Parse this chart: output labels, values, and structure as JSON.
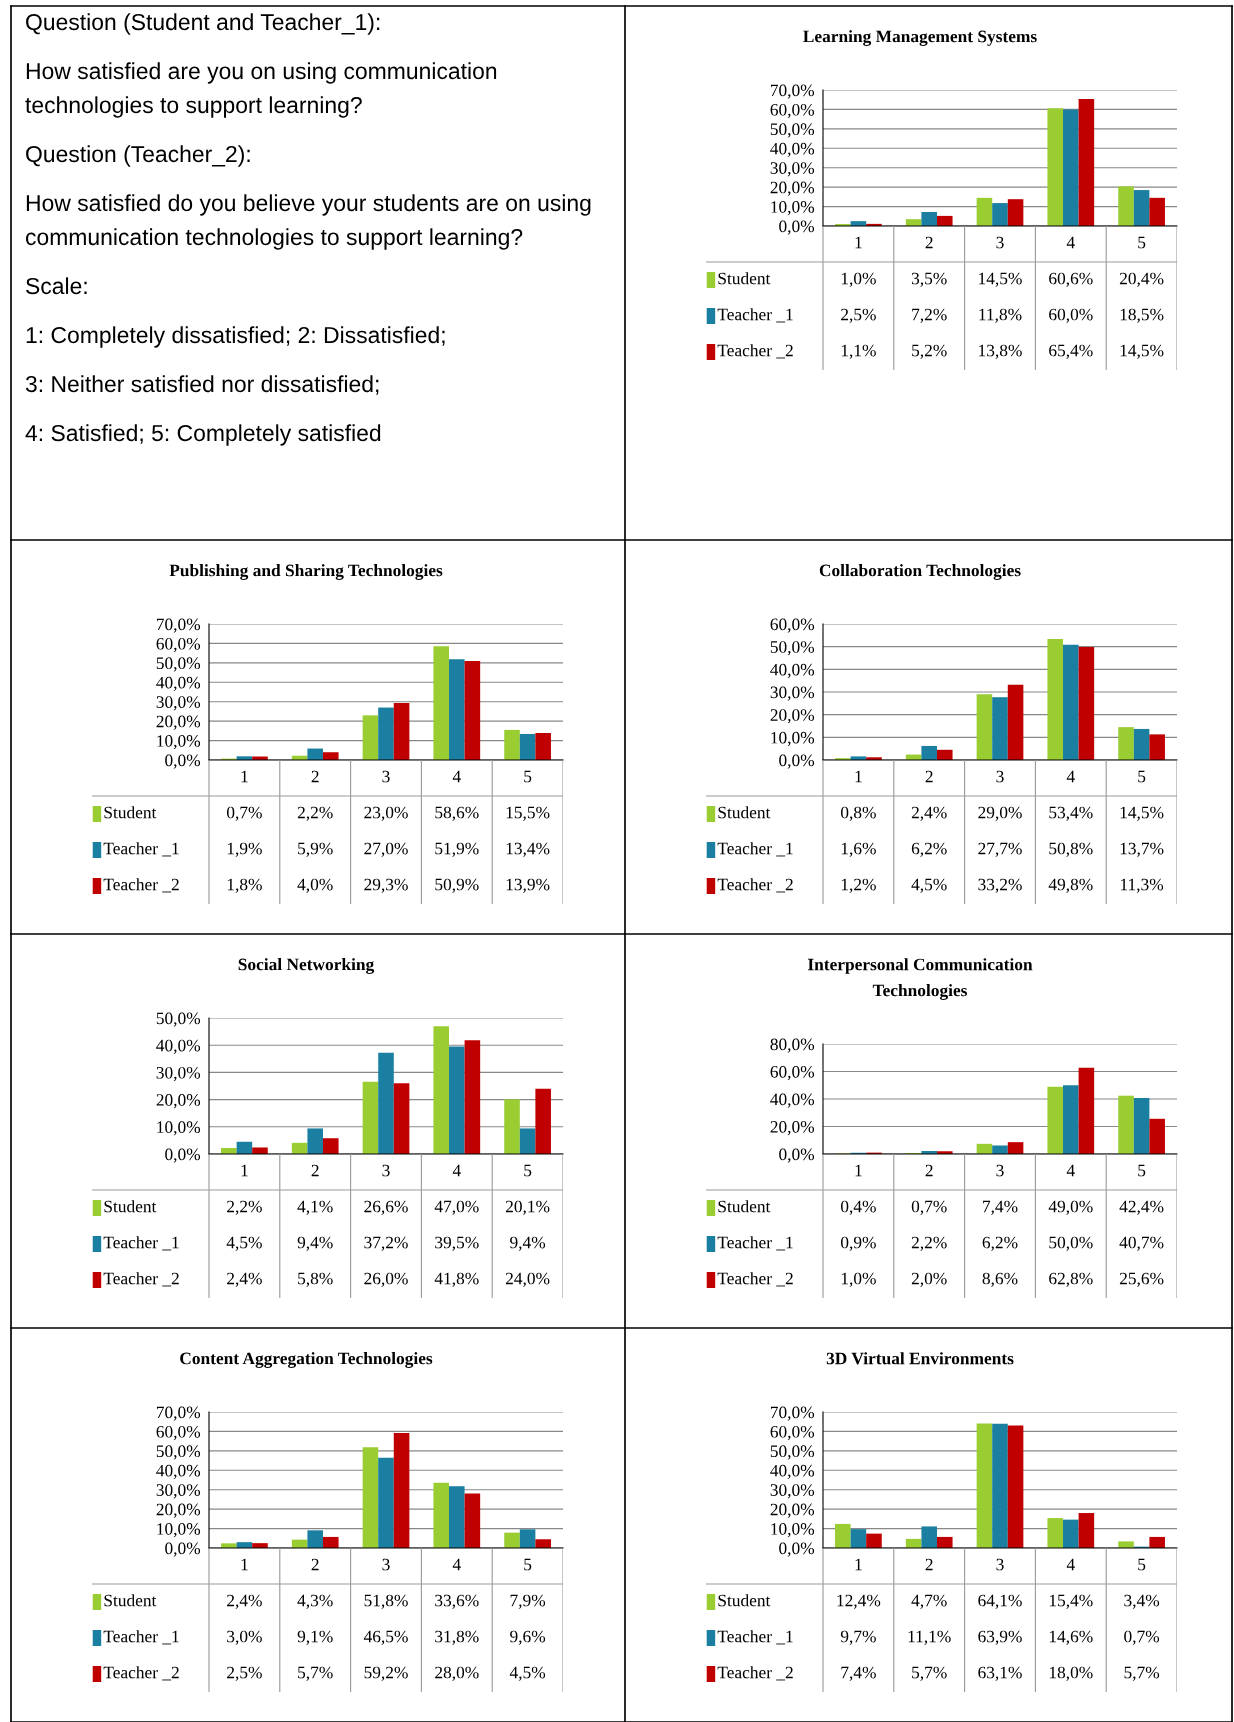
{
  "chart_data": [
    {
      "type": "other",
      "annotations": [
        "Question (Student and Teacher_1):",
        "How satisfied are you on using communication technologies to support learning?",
        "Question (Teacher_2):",
        "How satisfied do you believe your students are on using communication technologies to support learning?",
        "Scale:",
        "1: Completely dissatisfied; 2: Dissatisfied;",
        "3: Neither satisfied nor dissatisfied;",
        "4: Satisfied; 5: Completely satisfied"
      ]
    },
    {
      "type": "bar",
      "legend": "bottom left",
      "title": "Learning Management Systems",
      "categories": [
        "1",
        "2",
        "3",
        "4",
        "5"
      ],
      "grid": "y",
      "ylim": [
        0,
        70
      ],
      "yticks": [
        {
          "value": 0,
          "label": "0,0%"
        },
        {
          "value": 10,
          "label": "10,0%"
        },
        {
          "value": 20,
          "label": "20,0%"
        },
        {
          "value": 30,
          "label": "30,0%"
        },
        {
          "value": 40,
          "label": "40,0%"
        },
        {
          "value": 50,
          "label": "50,0%"
        },
        {
          "value": 60,
          "label": "60,0%"
        },
        {
          "value": 70,
          "label": "70,0%"
        }
      ],
      "series": [
        {
          "name": "Student",
          "color": "#9acd32",
          "values": [
            1.0,
            3.5,
            14.5,
            60.6,
            20.4
          ],
          "value_labels": [
            "1,0%",
            "3,5%",
            "14,5%",
            "60,6%",
            "20,4%"
          ]
        },
        {
          "name": "Teacher _1",
          "color": "#1a7fa0",
          "values": [
            2.5,
            7.2,
            11.8,
            60.0,
            18.5
          ],
          "value_labels": [
            "2,5%",
            "7,2%",
            "11,8%",
            "60,0%",
            "18,5%"
          ]
        },
        {
          "name": "Teacher _2",
          "color": "#c00000",
          "values": [
            1.1,
            5.2,
            13.8,
            65.4,
            14.5
          ],
          "value_labels": [
            "1,1%",
            "5,2%",
            "13,8%",
            "65,4%",
            "14,5%"
          ]
        }
      ]
    },
    {
      "type": "bar",
      "legend": "bottom left",
      "title": "Publishing and Sharing Technologies",
      "categories": [
        "1",
        "2",
        "3",
        "4",
        "5"
      ],
      "grid": "y",
      "ylim": [
        0,
        70
      ],
      "yticks": [
        {
          "value": 0,
          "label": "0,0%"
        },
        {
          "value": 10,
          "label": "10,0%"
        },
        {
          "value": 20,
          "label": "20,0%"
        },
        {
          "value": 30,
          "label": "30,0%"
        },
        {
          "value": 40,
          "label": "40,0%"
        },
        {
          "value": 50,
          "label": "50,0%"
        },
        {
          "value": 60,
          "label": "60,0%"
        },
        {
          "value": 70,
          "label": "70,0%"
        }
      ],
      "series": [
        {
          "name": "Student",
          "color": "#9acd32",
          "values": [
            0.7,
            2.2,
            23.0,
            58.6,
            15.5
          ],
          "value_labels": [
            "0,7%",
            "2,2%",
            "23,0%",
            "58,6%",
            "15,5%"
          ]
        },
        {
          "name": "Teacher _1",
          "color": "#1a7fa0",
          "values": [
            1.9,
            5.9,
            27.0,
            51.9,
            13.4
          ],
          "value_labels": [
            "1,9%",
            "5,9%",
            "27,0%",
            "51,9%",
            "13,4%"
          ]
        },
        {
          "name": "Teacher _2",
          "color": "#c00000",
          "values": [
            1.8,
            4.0,
            29.3,
            50.9,
            13.9
          ],
          "value_labels": [
            "1,8%",
            "4,0%",
            "29,3%",
            "50,9%",
            "13,9%"
          ]
        }
      ]
    },
    {
      "type": "bar",
      "legend": "bottom left",
      "title": "Collaboration Technologies",
      "categories": [
        "1",
        "2",
        "3",
        "4",
        "5"
      ],
      "grid": "y",
      "ylim": [
        0,
        60
      ],
      "yticks": [
        {
          "value": 0,
          "label": "0,0%"
        },
        {
          "value": 10,
          "label": "10,0%"
        },
        {
          "value": 20,
          "label": "20,0%"
        },
        {
          "value": 30,
          "label": "30,0%"
        },
        {
          "value": 40,
          "label": "40,0%"
        },
        {
          "value": 50,
          "label": "50,0%"
        },
        {
          "value": 60,
          "label": "60,0%"
        }
      ],
      "series": [
        {
          "name": "Student",
          "color": "#9acd32",
          "values": [
            0.8,
            2.4,
            29.0,
            53.4,
            14.5
          ],
          "value_labels": [
            "0,8%",
            "2,4%",
            "29,0%",
            "53,4%",
            "14,5%"
          ]
        },
        {
          "name": "Teacher _1",
          "color": "#1a7fa0",
          "values": [
            1.6,
            6.2,
            27.7,
            50.8,
            13.7
          ],
          "value_labels": [
            "1,6%",
            "6,2%",
            "27,7%",
            "50,8%",
            "13,7%"
          ]
        },
        {
          "name": "Teacher _2",
          "color": "#c00000",
          "values": [
            1.2,
            4.5,
            33.2,
            49.8,
            11.3
          ],
          "value_labels": [
            "1,2%",
            "4,5%",
            "33,2%",
            "49,8%",
            "11,3%"
          ]
        }
      ]
    },
    {
      "type": "bar",
      "legend": "bottom left",
      "title": "Social Networking",
      "categories": [
        "1",
        "2",
        "3",
        "4",
        "5"
      ],
      "grid": "y",
      "ylim": [
        0,
        50
      ],
      "yticks": [
        {
          "value": 0,
          "label": "0,0%"
        },
        {
          "value": 10,
          "label": "10,0%"
        },
        {
          "value": 20,
          "label": "20,0%"
        },
        {
          "value": 30,
          "label": "30,0%"
        },
        {
          "value": 40,
          "label": "40,0%"
        },
        {
          "value": 50,
          "label": "50,0%"
        }
      ],
      "series": [
        {
          "name": "Student",
          "color": "#9acd32",
          "values": [
            2.2,
            4.1,
            26.6,
            47.0,
            20.1
          ],
          "value_labels": [
            "2,2%",
            "4,1%",
            "26,6%",
            "47,0%",
            "20,1%"
          ]
        },
        {
          "name": "Teacher _1",
          "color": "#1a7fa0",
          "values": [
            4.5,
            9.4,
            37.2,
            39.5,
            9.4
          ],
          "value_labels": [
            "4,5%",
            "9,4%",
            "37,2%",
            "39,5%",
            "9,4%"
          ]
        },
        {
          "name": "Teacher _2",
          "color": "#c00000",
          "values": [
            2.4,
            5.8,
            26.0,
            41.8,
            24.0
          ],
          "value_labels": [
            "2,4%",
            "5,8%",
            "26,0%",
            "41,8%",
            "24,0%"
          ]
        }
      ]
    },
    {
      "type": "bar",
      "legend": "bottom left",
      "title": "Interpersonal Communication Technologies",
      "categories": [
        "1",
        "2",
        "3",
        "4",
        "5"
      ],
      "grid": "y",
      "ylim": [
        0,
        80
      ],
      "yticks": [
        {
          "value": 0,
          "label": "0,0%"
        },
        {
          "value": 20,
          "label": "20,0%"
        },
        {
          "value": 40,
          "label": "40,0%"
        },
        {
          "value": 60,
          "label": "60,0%"
        },
        {
          "value": 80,
          "label": "80,0%"
        }
      ],
      "series": [
        {
          "name": "Student",
          "color": "#9acd32",
          "values": [
            0.4,
            0.7,
            7.4,
            49.0,
            42.4
          ],
          "value_labels": [
            "0,4%",
            "0,7%",
            "7,4%",
            "49,0%",
            "42,4%"
          ]
        },
        {
          "name": "Teacher _1",
          "color": "#1a7fa0",
          "values": [
            0.9,
            2.2,
            6.2,
            50.0,
            40.7
          ],
          "value_labels": [
            "0,9%",
            "2,2%",
            "6,2%",
            "50,0%",
            "40,7%"
          ]
        },
        {
          "name": "Teacher _2",
          "color": "#c00000",
          "values": [
            1.0,
            2.0,
            8.6,
            62.8,
            25.6
          ],
          "value_labels": [
            "1,0%",
            "2,0%",
            "8,6%",
            "62,8%",
            "25,6%"
          ]
        }
      ]
    },
    {
      "type": "bar",
      "legend": "bottom left",
      "title": "Content Aggregation Technologies",
      "categories": [
        "1",
        "2",
        "3",
        "4",
        "5"
      ],
      "grid": "y",
      "ylim": [
        0,
        70
      ],
      "yticks": [
        {
          "value": 0,
          "label": "0,0%"
        },
        {
          "value": 10,
          "label": "10,0%"
        },
        {
          "value": 20,
          "label": "20,0%"
        },
        {
          "value": 30,
          "label": "30,0%"
        },
        {
          "value": 40,
          "label": "40,0%"
        },
        {
          "value": 50,
          "label": "50,0%"
        },
        {
          "value": 60,
          "label": "60,0%"
        },
        {
          "value": 70,
          "label": "70,0%"
        }
      ],
      "series": [
        {
          "name": "Student",
          "color": "#9acd32",
          "values": [
            2.4,
            4.3,
            51.8,
            33.6,
            7.9
          ],
          "value_labels": [
            "2,4%",
            "4,3%",
            "51,8%",
            "33,6%",
            "7,9%"
          ]
        },
        {
          "name": "Teacher _1",
          "color": "#1a7fa0",
          "values": [
            3.0,
            9.1,
            46.5,
            31.8,
            9.6
          ],
          "value_labels": [
            "3,0%",
            "9,1%",
            "46,5%",
            "31,8%",
            "9,6%"
          ]
        },
        {
          "name": "Teacher _2",
          "color": "#c00000",
          "values": [
            2.5,
            5.7,
            59.2,
            28.0,
            4.5
          ],
          "value_labels": [
            "2,5%",
            "5,7%",
            "59,2%",
            "28,0%",
            "4,5%"
          ]
        }
      ]
    },
    {
      "type": "bar",
      "legend": "bottom left",
      "title": "3D Virtual Environments",
      "categories": [
        "1",
        "2",
        "3",
        "4",
        "5"
      ],
      "grid": "y",
      "ylim": [
        0,
        70
      ],
      "yticks": [
        {
          "value": 0,
          "label": "0,0%"
        },
        {
          "value": 10,
          "label": "10,0%"
        },
        {
          "value": 20,
          "label": "20,0%"
        },
        {
          "value": 30,
          "label": "30,0%"
        },
        {
          "value": 40,
          "label": "40,0%"
        },
        {
          "value": 50,
          "label": "50,0%"
        },
        {
          "value": 60,
          "label": "60,0%"
        },
        {
          "value": 70,
          "label": "70,0%"
        }
      ],
      "series": [
        {
          "name": "Student",
          "color": "#9acd32",
          "values": [
            12.4,
            4.7,
            64.1,
            15.4,
            3.4
          ],
          "value_labels": [
            "12,4%",
            "4,7%",
            "64,1%",
            "15,4%",
            "3,4%"
          ]
        },
        {
          "name": "Teacher _1",
          "color": "#1a7fa0",
          "values": [
            9.7,
            11.1,
            63.9,
            14.6,
            0.7
          ],
          "value_labels": [
            "9,7%",
            "11,1%",
            "63,9%",
            "14,6%",
            "0,7%"
          ]
        },
        {
          "name": "Teacher _2",
          "color": "#c00000",
          "values": [
            7.4,
            5.7,
            63.1,
            18.0,
            5.7
          ],
          "value_labels": [
            "7,4%",
            "5,7%",
            "63,1%",
            "18,0%",
            "5,7%"
          ]
        }
      ]
    }
  ]
}
